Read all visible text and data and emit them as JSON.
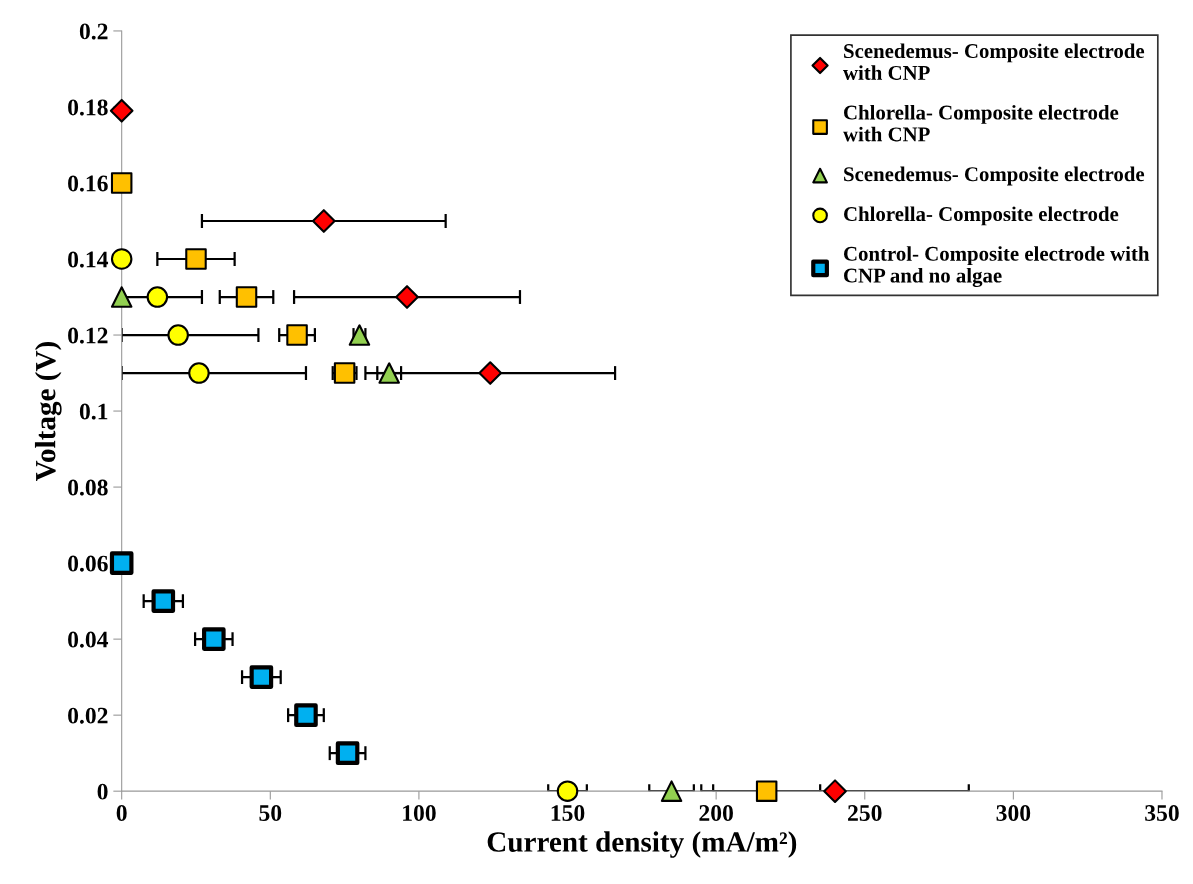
{
  "chart_data": {
    "type": "scatter",
    "xlabel": "Current density (mA/m²)",
    "ylabel": "Voltage (V)",
    "xlim": [
      0,
      350
    ],
    "xticks": [
      0,
      50,
      100,
      150,
      200,
      250,
      300,
      350
    ],
    "ylim": [
      0,
      0.2
    ],
    "yticks": [
      0,
      0.02,
      0.04,
      0.06,
      0.08,
      0.1,
      0.12,
      0.14,
      0.16,
      0.18,
      0.2
    ],
    "grid": false,
    "legend": "top right",
    "series": [
      {
        "name": "Scenedemus- Composite electrode\nwith CNP",
        "color": "#ff0000",
        "marker": "diamond",
        "x": [
          0,
          68,
          96,
          124,
          240
        ],
        "values": [
          0.179,
          0.15,
          0.13,
          0.11,
          0
        ],
        "xerrors": [
          null,
          41,
          38,
          42,
          45
        ]
      },
      {
        "name": "Chlorella- Composite electrode\nwith CNP",
        "color": "#ffc000",
        "marker": "square",
        "x": [
          0,
          25,
          42,
          59,
          75,
          217
        ],
        "values": [
          0.16,
          0.14,
          0.13,
          0.12,
          0.11,
          0
        ],
        "xerrors": [
          null,
          13,
          9,
          6,
          4,
          18
        ]
      },
      {
        "name": "Scenedemus- Composite electrode",
        "color": "#92d050",
        "marker": "triangle",
        "x": [
          0,
          80,
          90,
          185
        ],
        "values": [
          0.13,
          0.12,
          0.11,
          0
        ],
        "xerrors": [
          null,
          2,
          4,
          7.5
        ]
      },
      {
        "name": "Chlorella- Composite electrode",
        "color": "#ffff00",
        "marker": "circle",
        "x": [
          0,
          12,
          19,
          26,
          150
        ],
        "values": [
          0.14,
          0.13,
          0.12,
          0.11,
          0
        ],
        "xerrors": [
          null,
          15,
          [
            0,
            46
          ],
          [
            0,
            62
          ],
          6.5
        ]
      },
      {
        "name": "Control- Composite electrode with\nCNP and no algae",
        "color": "#00b0f0",
        "marker": "square",
        "x": [
          0,
          14,
          31,
          47,
          62,
          76
        ],
        "values": [
          0.06,
          0.05,
          0.04,
          0.03,
          0.02,
          0.01
        ],
        "xerrors": [
          null,
          6.6,
          6.3,
          6.5,
          6,
          6
        ]
      }
    ]
  }
}
